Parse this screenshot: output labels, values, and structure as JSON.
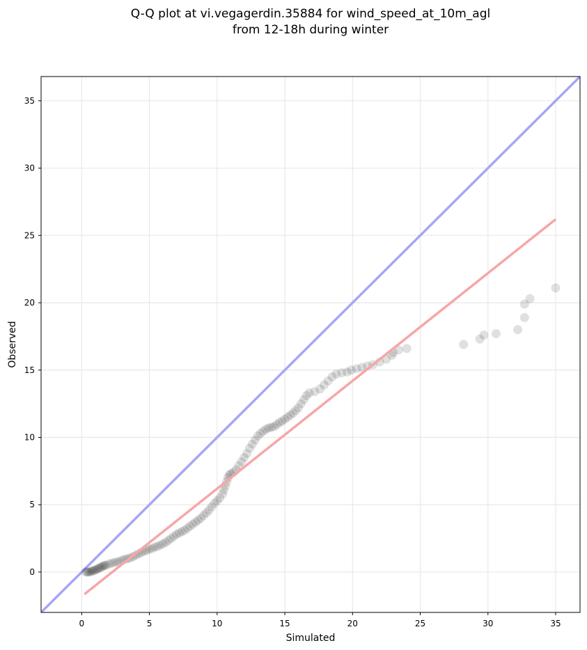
{
  "chart_data": {
    "type": "scatter",
    "title_line1": "Q-Q plot at vi.vegagerdin.35884 for wind_speed_at_10m_agl",
    "title_line2": "from 12-18h during winter",
    "xlabel": "Simulated",
    "ylabel": "Observed",
    "xlim": [
      -3,
      36.8
    ],
    "ylim": [
      -3,
      36.8
    ],
    "xticks": [
      0,
      5,
      10,
      15,
      20,
      25,
      30,
      35
    ],
    "yticks": [
      0,
      5,
      10,
      15,
      20,
      25,
      30,
      35
    ],
    "grid": true,
    "points": [
      [
        0.3,
        0.0
      ],
      [
        0.4,
        0.0
      ],
      [
        0.5,
        0.0
      ],
      [
        0.6,
        0.0
      ],
      [
        0.7,
        0.05
      ],
      [
        0.8,
        0.1
      ],
      [
        0.9,
        0.1
      ],
      [
        1.0,
        0.15
      ],
      [
        1.1,
        0.2
      ],
      [
        1.2,
        0.25
      ],
      [
        1.3,
        0.3
      ],
      [
        1.4,
        0.35
      ],
      [
        1.5,
        0.4
      ],
      [
        1.6,
        0.45
      ],
      [
        1.7,
        0.5
      ],
      [
        1.8,
        0.5
      ],
      [
        2.0,
        0.6
      ],
      [
        2.2,
        0.65
      ],
      [
        2.4,
        0.7
      ],
      [
        2.6,
        0.75
      ],
      [
        2.8,
        0.8
      ],
      [
        3.0,
        0.9
      ],
      [
        3.2,
        0.95
      ],
      [
        3.4,
        1.0
      ],
      [
        3.6,
        1.05
      ],
      [
        3.8,
        1.15
      ],
      [
        4.0,
        1.25
      ],
      [
        4.2,
        1.35
      ],
      [
        4.4,
        1.45
      ],
      [
        4.6,
        1.55
      ],
      [
        4.8,
        1.6
      ],
      [
        5.0,
        1.7
      ],
      [
        5.2,
        1.75
      ],
      [
        5.4,
        1.85
      ],
      [
        5.6,
        1.9
      ],
      [
        5.8,
        2.0
      ],
      [
        6.0,
        2.1
      ],
      [
        6.2,
        2.2
      ],
      [
        6.4,
        2.35
      ],
      [
        6.6,
        2.5
      ],
      [
        6.8,
        2.65
      ],
      [
        7.0,
        2.8
      ],
      [
        7.2,
        2.9
      ],
      [
        7.4,
        3.0
      ],
      [
        7.6,
        3.1
      ],
      [
        7.8,
        3.25
      ],
      [
        8.0,
        3.4
      ],
      [
        8.2,
        3.55
      ],
      [
        8.4,
        3.7
      ],
      [
        8.6,
        3.85
      ],
      [
        8.8,
        4.0
      ],
      [
        9.0,
        4.2
      ],
      [
        9.2,
        4.4
      ],
      [
        9.4,
        4.6
      ],
      [
        9.6,
        4.85
      ],
      [
        9.8,
        5.1
      ],
      [
        10.0,
        5.3
      ],
      [
        10.2,
        5.5
      ],
      [
        10.4,
        5.8
      ],
      [
        10.5,
        6.1
      ],
      [
        10.6,
        6.4
      ],
      [
        10.7,
        6.7
      ],
      [
        10.8,
        7.0
      ],
      [
        10.9,
        7.2
      ],
      [
        11.0,
        7.3
      ],
      [
        11.2,
        7.4
      ],
      [
        11.4,
        7.6
      ],
      [
        11.6,
        7.9
      ],
      [
        11.8,
        8.2
      ],
      [
        12.0,
        8.5
      ],
      [
        12.2,
        8.8
      ],
      [
        12.4,
        9.2
      ],
      [
        12.6,
        9.5
      ],
      [
        12.8,
        9.8
      ],
      [
        13.0,
        10.1
      ],
      [
        13.2,
        10.3
      ],
      [
        13.4,
        10.45
      ],
      [
        13.6,
        10.6
      ],
      [
        13.8,
        10.7
      ],
      [
        14.0,
        10.75
      ],
      [
        14.2,
        10.8
      ],
      [
        14.4,
        10.95
      ],
      [
        14.6,
        11.1
      ],
      [
        14.8,
        11.2
      ],
      [
        15.0,
        11.35
      ],
      [
        15.2,
        11.5
      ],
      [
        15.4,
        11.65
      ],
      [
        15.6,
        11.8
      ],
      [
        15.8,
        12.0
      ],
      [
        16.0,
        12.2
      ],
      [
        16.2,
        12.5
      ],
      [
        16.4,
        12.8
      ],
      [
        16.6,
        13.1
      ],
      [
        16.8,
        13.3
      ],
      [
        17.2,
        13.4
      ],
      [
        17.6,
        13.6
      ],
      [
        17.9,
        13.9
      ],
      [
        18.2,
        14.2
      ],
      [
        18.5,
        14.5
      ],
      [
        18.8,
        14.7
      ],
      [
        19.2,
        14.8
      ],
      [
        19.6,
        14.85
      ],
      [
        19.9,
        15.0
      ],
      [
        20.3,
        15.1
      ],
      [
        20.7,
        15.2
      ],
      [
        21.1,
        15.3
      ],
      [
        21.5,
        15.4
      ],
      [
        22.0,
        15.6
      ],
      [
        22.5,
        15.8
      ],
      [
        22.9,
        16.1
      ],
      [
        23.0,
        16.3
      ],
      [
        23.4,
        16.5
      ],
      [
        24.0,
        16.6
      ],
      [
        28.2,
        16.9
      ],
      [
        29.4,
        17.3
      ],
      [
        29.7,
        17.6
      ],
      [
        30.6,
        17.7
      ],
      [
        32.2,
        18.0
      ],
      [
        32.7,
        18.9
      ],
      [
        32.7,
        19.9
      ],
      [
        33.1,
        20.3
      ],
      [
        35.0,
        21.1
      ]
    ],
    "identity_line": {
      "color": "#a6a6f5"
    },
    "fit_line": {
      "x": [
        0.2,
        35.0
      ],
      "y": [
        -1.65,
        26.2
      ],
      "color": "#f6a6a6"
    },
    "point_color": "#000000"
  }
}
